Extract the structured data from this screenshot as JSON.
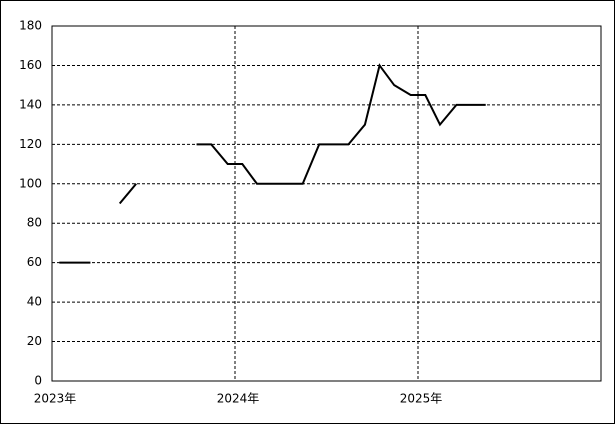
{
  "chart_data": {
    "type": "line",
    "x": [
      2023.04,
      2023.12,
      2023.21,
      2023.29,
      2023.37,
      2023.46,
      2023.54,
      2023.62,
      2023.71,
      2023.79,
      2023.87,
      2023.96,
      2024.04,
      2024.12,
      2024.21,
      2024.29,
      2024.37,
      2024.46,
      2024.54,
      2024.62,
      2024.71,
      2024.79,
      2024.87,
      2024.96,
      2025.04,
      2025.12,
      2025.21,
      2025.29,
      2025.37
    ],
    "series": [
      {
        "color": "#000000",
        "values": [
          60,
          60,
          60,
          null,
          90,
          100,
          null,
          null,
          null,
          120,
          120,
          110,
          110,
          100,
          100,
          100,
          100,
          120,
          120,
          120,
          130,
          160,
          150,
          145,
          145,
          130,
          140,
          140,
          140
        ]
      }
    ],
    "xlim": [
      2023,
      2026
    ],
    "xticks": [
      {
        "value": 2023,
        "label": "2023年"
      },
      {
        "value": 2024,
        "label": "2024年"
      },
      {
        "value": 2025,
        "label": "2025年"
      }
    ],
    "ylim": [
      0,
      180
    ],
    "yticks": [
      0,
      20,
      40,
      60,
      80,
      100,
      120,
      140,
      160,
      180
    ],
    "grid": true
  }
}
